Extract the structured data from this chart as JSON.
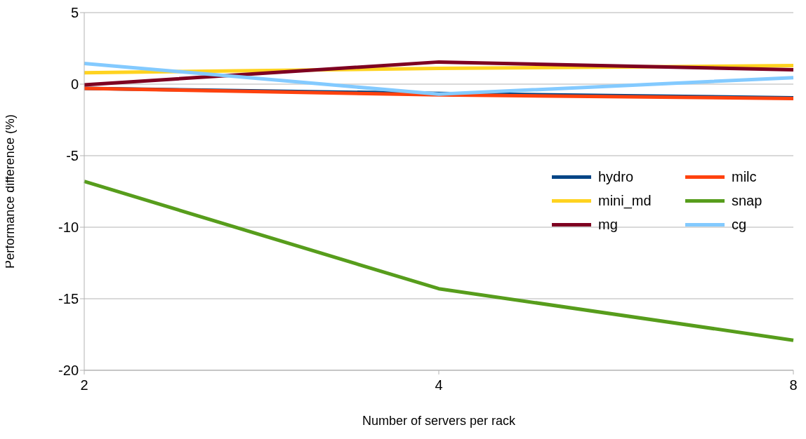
{
  "chart_data": {
    "type": "line",
    "xlabel": "Number of servers per rack",
    "ylabel": "Performance difference (%)",
    "categories": [
      "2",
      "4",
      "8"
    ],
    "series": [
      {
        "name": "hydro",
        "color": "#004586",
        "values": [
          -0.3,
          -0.65,
          -0.95
        ]
      },
      {
        "name": "milc",
        "color": "#ff420e",
        "values": [
          -0.3,
          -0.75,
          -1.0
        ]
      },
      {
        "name": "mini_md",
        "color": "#ffd320",
        "values": [
          0.8,
          1.1,
          1.3
        ]
      },
      {
        "name": "snap",
        "color": "#579d1c",
        "values": [
          -6.8,
          -14.3,
          -17.9
        ]
      },
      {
        "name": "mg",
        "color": "#7e0021",
        "values": [
          -0.05,
          1.55,
          1.0
        ]
      },
      {
        "name": "cg",
        "color": "#83caff",
        "values": [
          1.45,
          -0.7,
          0.45
        ]
      }
    ],
    "ylim": [
      -20,
      5
    ],
    "yticks": [
      -20,
      -15,
      -10,
      -5,
      0,
      5
    ],
    "grid": "y",
    "legend": "right",
    "marker": "none",
    "line_style": "solid"
  }
}
